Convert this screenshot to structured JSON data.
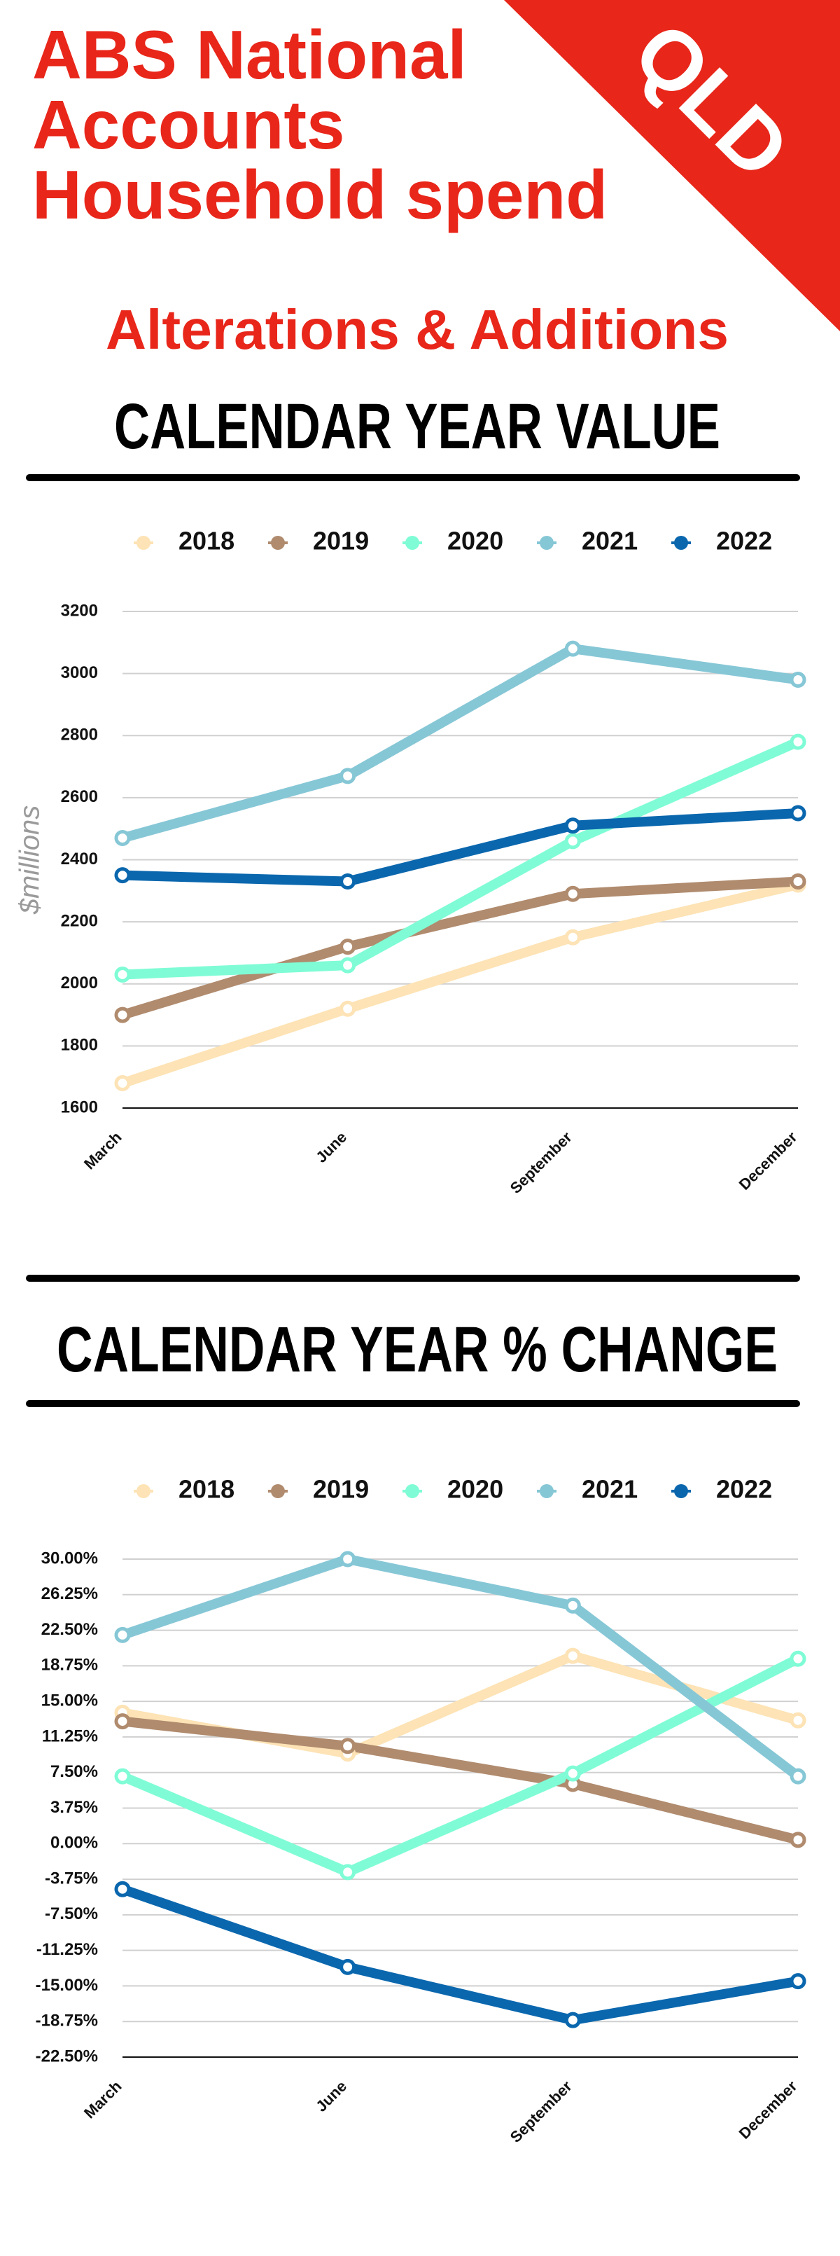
{
  "header": {
    "title_lines": [
      "ABS National",
      "Accounts",
      "Household spend"
    ],
    "badge": "QLD",
    "subtitle": "Alterations & Additions"
  },
  "chart_data": [
    {
      "type": "line",
      "title": "CALENDAR YEAR VALUE",
      "y_label": "$millions",
      "categories": [
        "March",
        "June",
        "September",
        "December"
      ],
      "series": [
        {
          "name": "2018",
          "color": "#fde3b5",
          "values": [
            1680,
            1920,
            2150,
            2320
          ]
        },
        {
          "name": "2019",
          "color": "#b08b6e",
          "values": [
            1900,
            2120,
            2290,
            2330
          ]
        },
        {
          "name": "2020",
          "color": "#7ffcd5",
          "values": [
            2030,
            2060,
            2460,
            2780
          ]
        },
        {
          "name": "2021",
          "color": "#86c7d6",
          "values": [
            2470,
            2670,
            3080,
            2980
          ]
        },
        {
          "name": "2022",
          "color": "#0a67ae",
          "values": [
            2350,
            2330,
            2510,
            2550
          ]
        }
      ],
      "ylim": [
        1600,
        3200
      ],
      "yticks": [
        1600,
        1800,
        2000,
        2200,
        2400,
        2600,
        2800,
        3000,
        3200
      ],
      "grid": true
    },
    {
      "type": "line",
      "title": "CALENDAR YEAR % CHANGE",
      "categories": [
        "March",
        "June",
        "September",
        "December"
      ],
      "series": [
        {
          "name": "2018",
          "color": "#fde3b5",
          "values": [
            13.8,
            9.5,
            19.8,
            13
          ]
        },
        {
          "name": "2019",
          "color": "#b08b6e",
          "values": [
            12.9,
            10.3,
            6.3,
            0.4
          ]
        },
        {
          "name": "2020",
          "color": "#7ffcd5",
          "values": [
            7.1,
            -3.0,
            7.4,
            19.5
          ]
        },
        {
          "name": "2021",
          "color": "#86c7d6",
          "values": [
            22.0,
            30.0,
            25.1,
            7.1
          ]
        },
        {
          "name": "2022",
          "color": "#0a67ae",
          "values": [
            -4.8,
            -13.0,
            -18.6,
            -14.5
          ]
        }
      ],
      "ylim": [
        -22.5,
        30
      ],
      "yticks": [
        {
          "value": -22.5,
          "label": "-22.50%"
        },
        {
          "value": -18.75,
          "label": "-18.75%"
        },
        {
          "value": -15,
          "label": "-15.00%"
        },
        {
          "value": -11.25,
          "label": "-11.25%"
        },
        {
          "value": -7.5,
          "label": "-7.50%"
        },
        {
          "value": -3.75,
          "label": "-3.75%"
        },
        {
          "value": 0,
          "label": "0.00%"
        },
        {
          "value": 3.75,
          "label": "3.75%"
        },
        {
          "value": 7.5,
          "label": "7.50%"
        },
        {
          "value": 11.25,
          "label": "11.25%"
        },
        {
          "value": 15,
          "label": "15.00%"
        },
        {
          "value": 18.75,
          "label": "18.75%"
        },
        {
          "value": 22.5,
          "label": "22.50%"
        },
        {
          "value": 26.25,
          "label": "26.25%"
        },
        {
          "value": 30,
          "label": "30.00%"
        }
      ],
      "grid": true
    }
  ]
}
